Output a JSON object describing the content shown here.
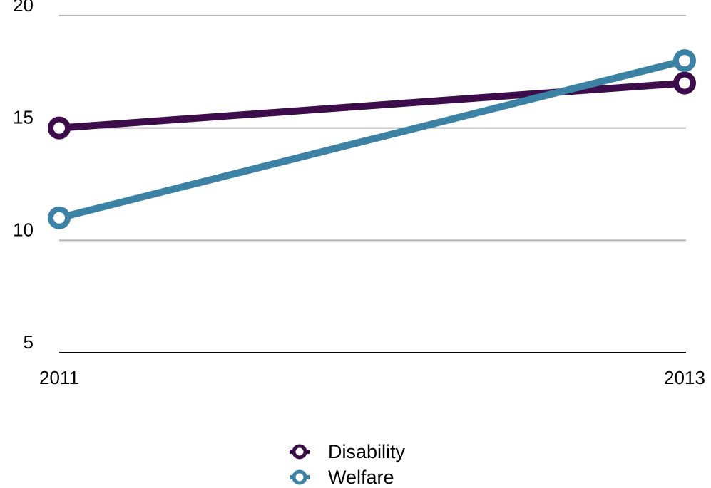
{
  "chart_data": {
    "type": "line",
    "x": [
      "2011",
      "2013"
    ],
    "series": [
      {
        "name": "Disability",
        "values": [
          15,
          17
        ],
        "color": "#3d0c4a"
      },
      {
        "name": "Welfare",
        "values": [
          11,
          18
        ],
        "color": "#3b82a5"
      }
    ],
    "ylim": [
      5,
      20
    ],
    "yticks": [
      "5",
      "10",
      "15",
      "20"
    ],
    "grid": true,
    "legend": "bottom-center",
    "title": "",
    "xlabel": "",
    "ylabel": ""
  }
}
